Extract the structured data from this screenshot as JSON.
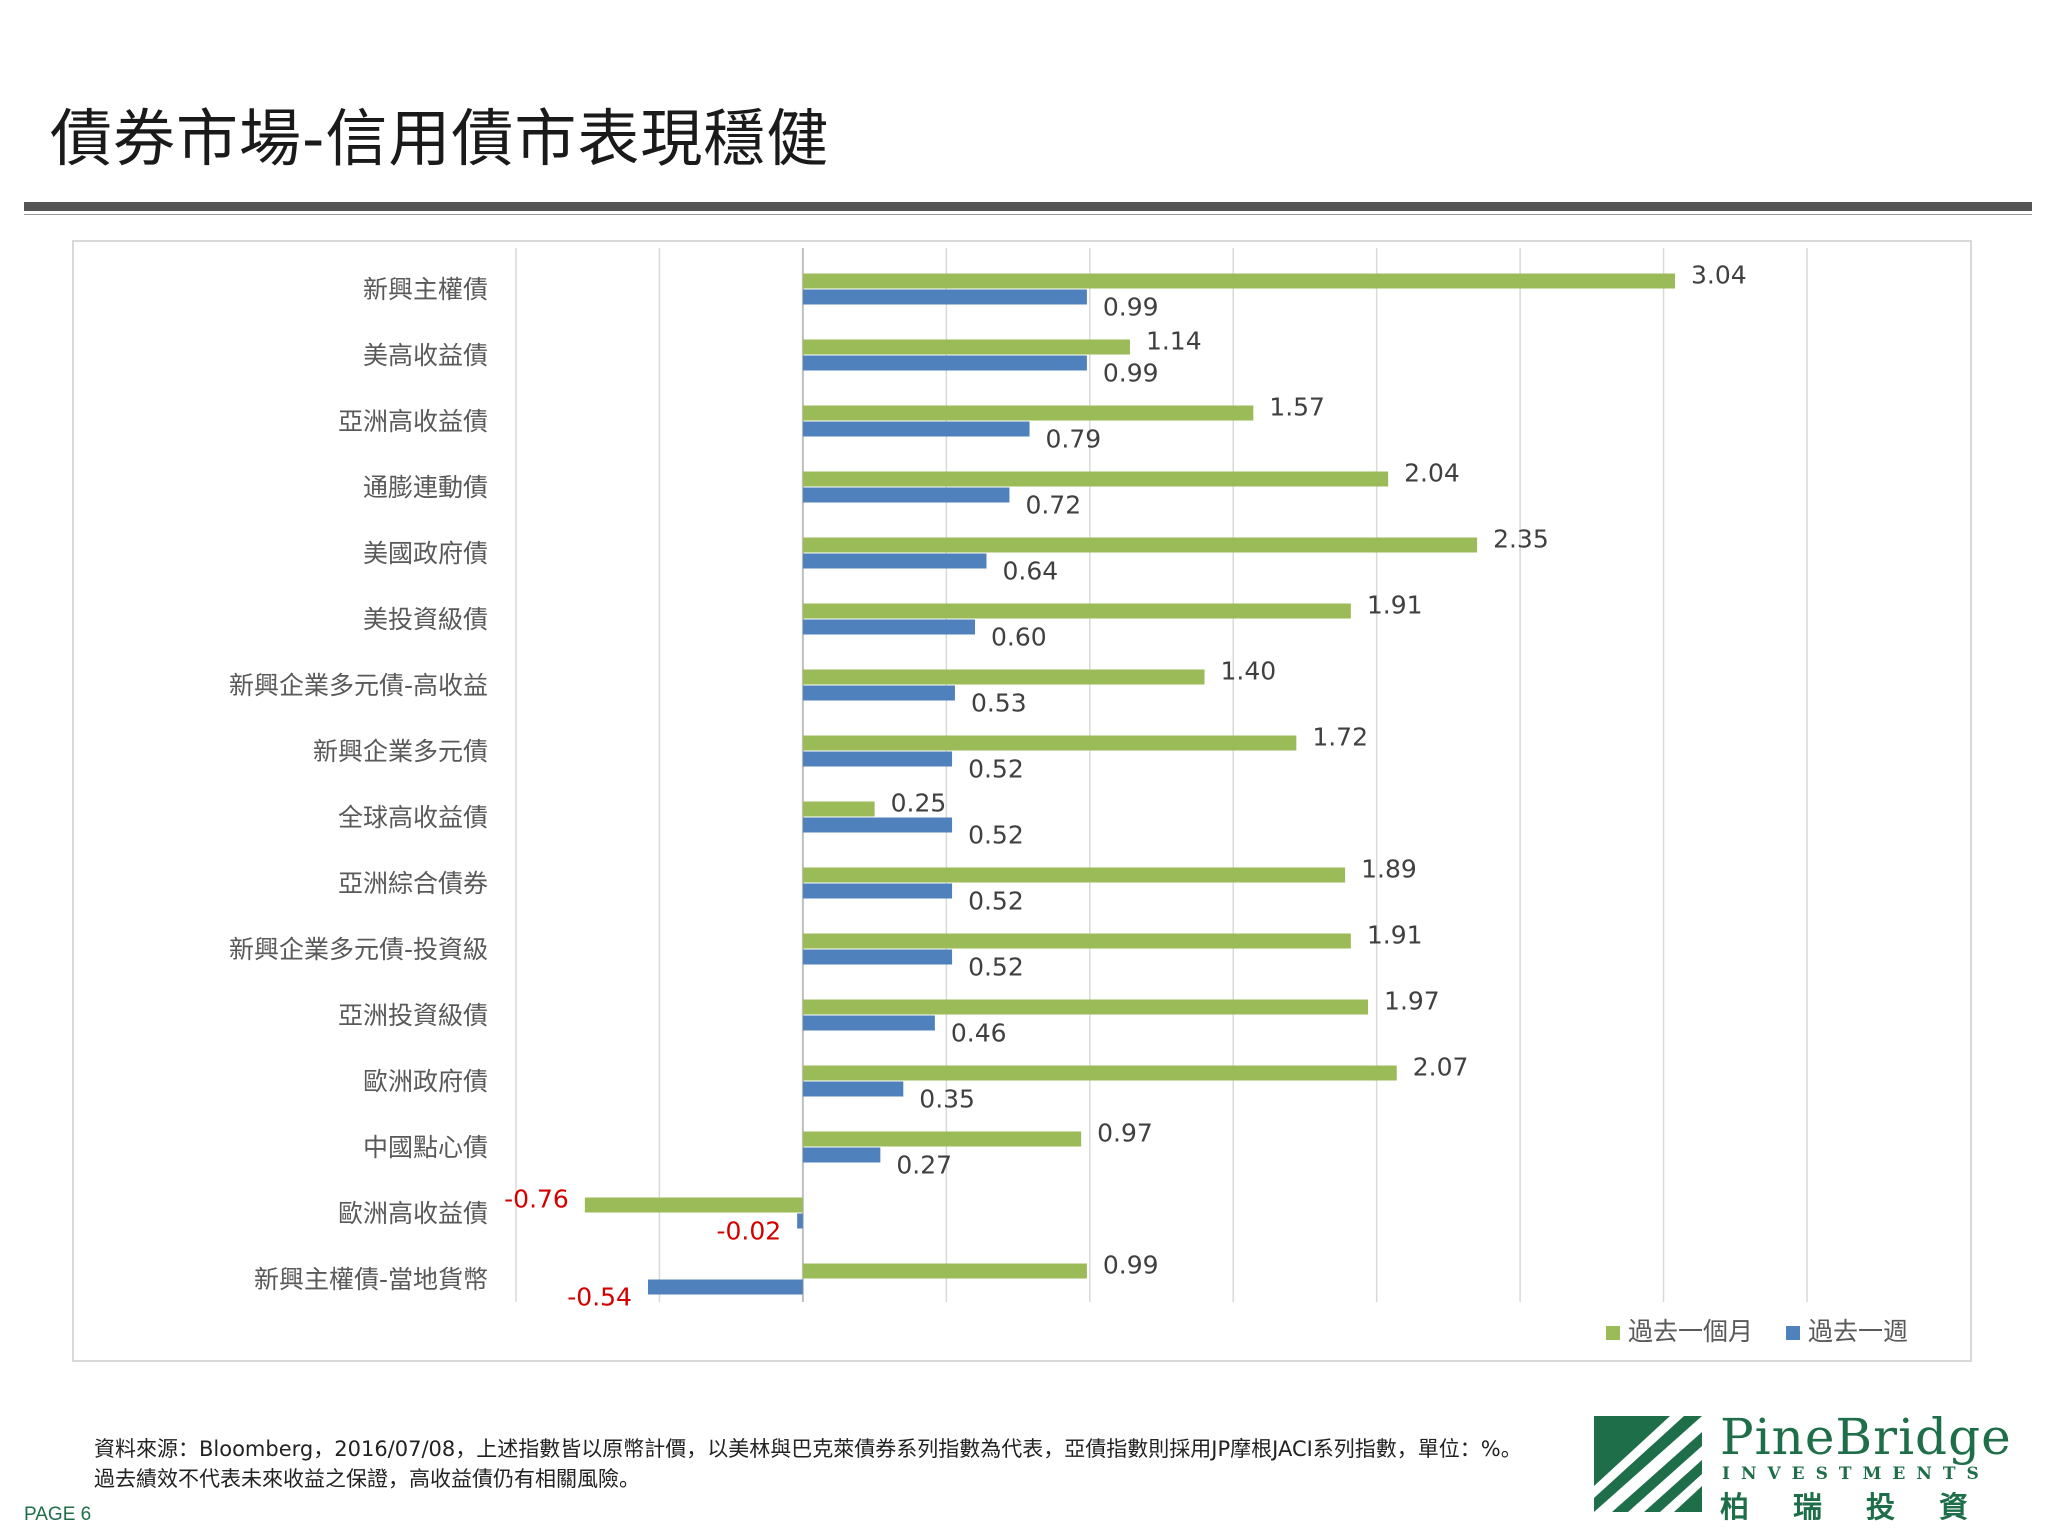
{
  "page": {
    "title": "債券市場-信用債市表現穩健",
    "footnote": "資料來源：Bloomberg，2016/07/08，上述指數皆以原幣計價，以美林與巴克萊債券系列指數為代表，亞債指數則採用JP摩根JACI系列指數，單位：%。過去績效不代表未來收益之保證，高收益債仍有相關風險。",
    "page_number": "PAGE 6"
  },
  "logo": {
    "name": "PineBridge",
    "sub": "INVESTMENTS",
    "cn": "柏瑞投資"
  },
  "colors": {
    "month": "#9bbb59",
    "week": "#4f81bd",
    "negative_label": "#d40000",
    "brand": "#1f6e4a"
  },
  "chart_data": {
    "type": "bar",
    "orientation": "horizontal",
    "categories": [
      "新興主權債",
      "美高收益債",
      "亞洲高收益債",
      "通膨連動債",
      "美國政府債",
      "美投資級債",
      "新興企業多元債-高收益",
      "新興企業多元債",
      "全球高收益債",
      "亞洲綜合債券",
      "新興企業多元債-投資級",
      "亞洲投資級債",
      "歐洲政府債",
      "中國點心債",
      "歐洲高收益債",
      "新興主權債-當地貨幣"
    ],
    "series": [
      {
        "name": "過去一個月",
        "values": [
          3.04,
          1.14,
          1.57,
          2.04,
          2.35,
          1.91,
          1.4,
          1.72,
          0.25,
          1.89,
          1.91,
          1.97,
          2.07,
          0.97,
          -0.76,
          0.99
        ],
        "labels": [
          "3.04",
          "1.14",
          "1.57",
          "2.04",
          "2.35",
          "1.91",
          "1.40",
          "1.72",
          "0.25",
          "1.89",
          "1.91",
          "1.97",
          "2.07",
          "0.97",
          "-0.76",
          "0.99"
        ]
      },
      {
        "name": "過去一週",
        "values": [
          0.99,
          0.99,
          0.79,
          0.72,
          0.64,
          0.6,
          0.53,
          0.52,
          0.52,
          0.52,
          0.52,
          0.46,
          0.35,
          0.27,
          -0.02,
          -0.54
        ],
        "labels": [
          "0.99",
          "0.99",
          "0.79",
          "0.72",
          "0.64",
          "0.60",
          "0.53",
          "0.52",
          "0.52",
          "0.52",
          "0.52",
          "0.46",
          "0.35",
          "0.27",
          "-0.02",
          "-0.54"
        ]
      }
    ],
    "xlim": [
      -1.0,
      3.5
    ],
    "gridlines": [
      -1.0,
      -0.5,
      0,
      0.5,
      1.0,
      1.5,
      2.0,
      2.5,
      3.0,
      3.5
    ],
    "grid": true,
    "tick_labels_shown": false,
    "legend_placement": "bottom-right"
  }
}
